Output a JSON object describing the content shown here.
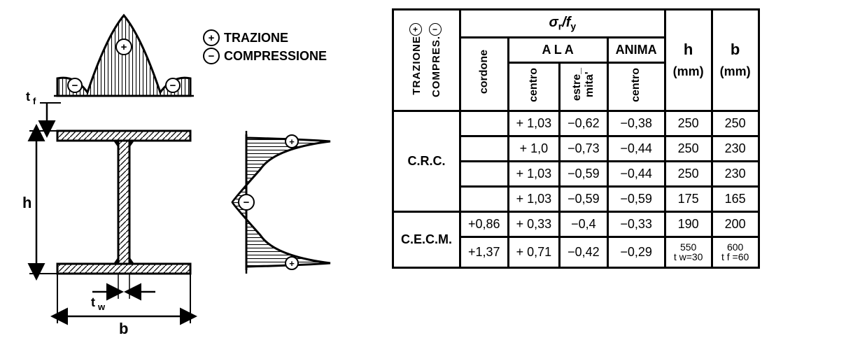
{
  "legend": {
    "trazione": "TRAZIONE",
    "compressione": "COMPRESSIONE",
    "plus": "+",
    "minus": "−"
  },
  "diagram": {
    "labels": {
      "tf": "t f",
      "tw": "t w",
      "h": "h",
      "b": "b"
    },
    "colors": {
      "stroke": "#000000",
      "fill_bg": "#ffffff"
    }
  },
  "table": {
    "top_formula": "σr/fy",
    "side_headers": {
      "trazione": "TRAZIONE",
      "compressione": "COMPRES."
    },
    "group_headers": {
      "ala": "A L A",
      "anima": "ANIMA"
    },
    "col_headers": {
      "cordone": "cordone",
      "centro_ala": "centro",
      "estremita": "estre_\nmita'",
      "centro_anima": "centro",
      "h": "h",
      "h_unit": "(mm)",
      "b": "b",
      "b_unit": "(mm)"
    },
    "rows": [
      {
        "group": "C.R.C.",
        "cordone": "",
        "centro_ala": "+ 1,03",
        "estremita": "−0,62",
        "centro_anima": "−0,38",
        "h": "250",
        "b": "250"
      },
      {
        "group": "C.R.C.",
        "cordone": "",
        "centro_ala": "+ 1,0",
        "estremita": "−0,73",
        "centro_anima": "−0,44",
        "h": "250",
        "b": "230"
      },
      {
        "group": "C.R.C.",
        "cordone": "",
        "centro_ala": "+ 1,03",
        "estremita": "−0,59",
        "centro_anima": "−0,44",
        "h": "250",
        "b": "230"
      },
      {
        "group": "C.R.C.",
        "cordone": "",
        "centro_ala": "+ 1,03",
        "estremita": "−0,59",
        "centro_anima": "−0,59",
        "h": "175",
        "b": "165"
      },
      {
        "group": "C.E.C.M.",
        "cordone": "+0,86",
        "centro_ala": "+ 0,33",
        "estremita": "−0,4",
        "centro_anima": "−0,33",
        "h": "190",
        "b": "200"
      },
      {
        "group": "C.E.C.M.",
        "cordone": "+1,37",
        "centro_ala": "+ 0,71",
        "estremita": "−0,42",
        "centro_anima": "−0,29",
        "h": "550\nt w=30",
        "b": "600\nt f =60"
      }
    ],
    "group_spans": [
      {
        "label": "C.R.C.",
        "count": 4
      },
      {
        "label": "C.E.C.M.",
        "count": 2
      }
    ]
  }
}
